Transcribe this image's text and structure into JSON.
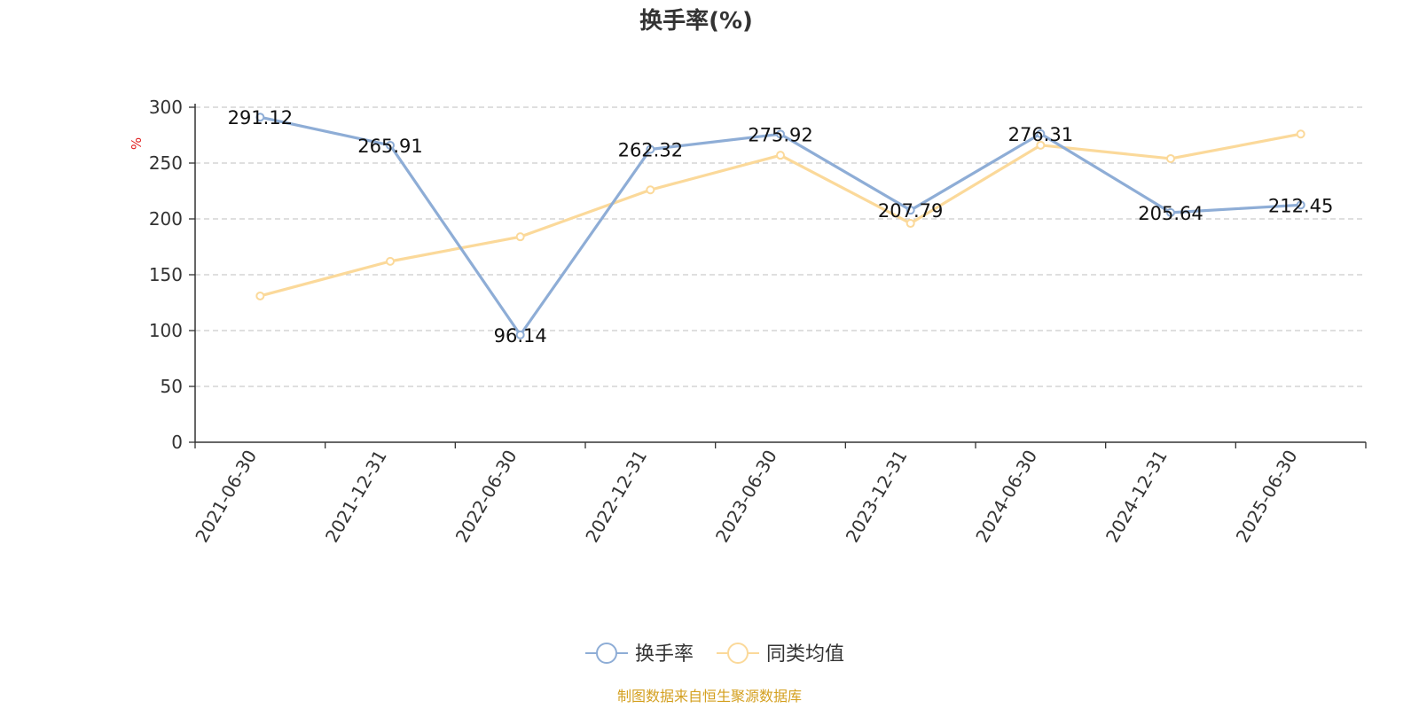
{
  "chart_data": {
    "type": "line",
    "title": "换手率(%)",
    "ylabel": "%",
    "ylim": [
      0,
      300
    ],
    "yticks": [
      0,
      50,
      100,
      150,
      200,
      250,
      300
    ],
    "grid": true,
    "legend_position": "bottom-center",
    "categories": [
      "2021-06-30",
      "2021-12-31",
      "2022-06-30",
      "2022-12-31",
      "2023-06-30",
      "2023-12-31",
      "2024-06-30",
      "2024-12-31",
      "2025-06-30"
    ],
    "series": [
      {
        "name": "换手率",
        "color": "#8eadd6",
        "values": [
          291.12,
          265.91,
          96.14,
          262.32,
          275.92,
          207.79,
          276.31,
          205.64,
          212.45
        ],
        "labels": [
          "291.12",
          "265.91",
          "96.14",
          "262.32",
          "275.92",
          "207.79",
          "276.31",
          "205.64",
          "212.45"
        ]
      },
      {
        "name": "同类均值",
        "color": "#fbd99a",
        "values": [
          131,
          162,
          184,
          226,
          257,
          196,
          266,
          254,
          276
        ]
      }
    ]
  },
  "source_note": "制图数据来自恒生聚源数据库",
  "colors": {
    "axis": "#333333",
    "grid": "#cccccc",
    "unit_label": "#e02020",
    "source_note": "#d4a020"
  }
}
